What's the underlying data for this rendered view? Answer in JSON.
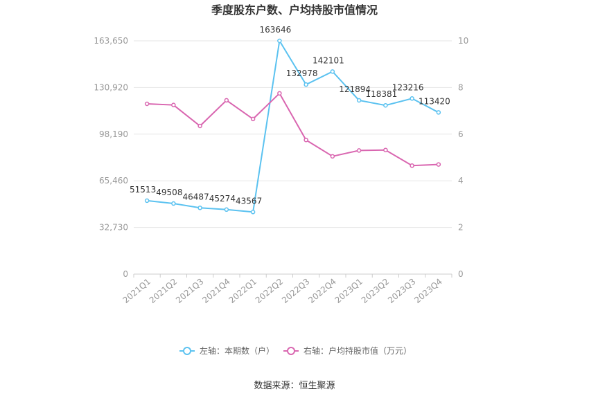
{
  "chart_data": {
    "type": "line",
    "title": "季度股东户数、户均持股市值情况",
    "categories": [
      "2021Q1",
      "2021Q2",
      "2021Q3",
      "2021Q4",
      "2022Q1",
      "2022Q2",
      "2022Q3",
      "2022Q4",
      "2023Q1",
      "2023Q2",
      "2023Q3",
      "2023Q4"
    ],
    "left_axis": {
      "ticks": [
        "0",
        "32,730",
        "65,460",
        "98,190",
        "130,920",
        "163,650"
      ],
      "ylim": [
        0,
        163650
      ]
    },
    "right_axis": {
      "ticks": [
        "0",
        "2",
        "4",
        "6",
        "8",
        "10"
      ],
      "ylim": [
        0,
        10
      ]
    },
    "series": [
      {
        "name": "左轴：本期数（户）",
        "axis": "left",
        "color": "#5bc2f0",
        "values": [
          51513,
          49508,
          46487,
          45274,
          43567,
          163646,
          132978,
          142101,
          121894,
          118381,
          123216,
          113420
        ],
        "labels": [
          "51513",
          "49508",
          "46487",
          "45274",
          "43567",
          "163646",
          "132978",
          "142101",
          "121894",
          "118381",
          "123216",
          "113420"
        ]
      },
      {
        "name": "右轴：户均持股市值（万元）",
        "axis": "right",
        "color": "#d966b0",
        "values": [
          7.3,
          7.25,
          6.35,
          7.45,
          6.65,
          7.75,
          5.75,
          5.05,
          5.3,
          5.32,
          4.65,
          4.7
        ]
      }
    ],
    "grid": true,
    "legend_position": "bottom"
  },
  "source": "数据来源：恒生聚源"
}
